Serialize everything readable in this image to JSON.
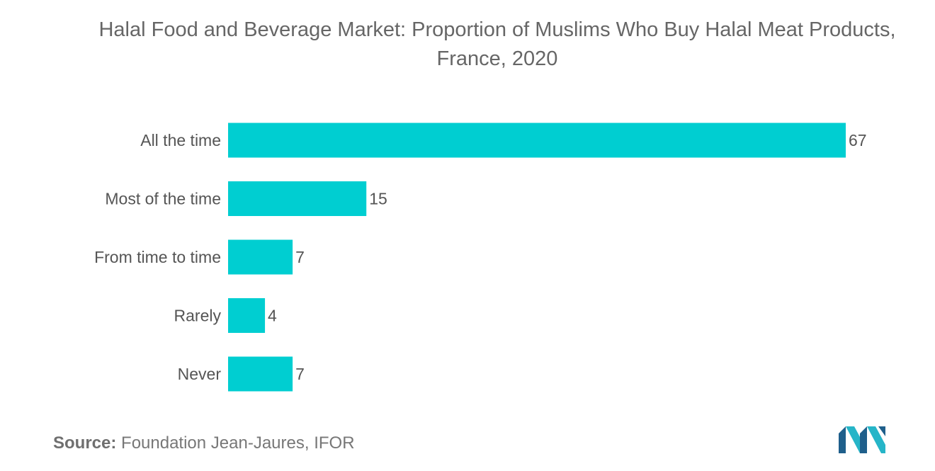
{
  "chart_data": {
    "type": "bar",
    "orientation": "horizontal",
    "title": "Halal Food and Beverage Market: Proportion of Muslims Who Buy Halal Meat Products, France, 2020",
    "categories": [
      "All the time",
      "Most of the time",
      "From time to time",
      "Rarely",
      "Never"
    ],
    "values": [
      67,
      15,
      7,
      4,
      7
    ],
    "xlabel": "",
    "ylabel": "",
    "xlim": [
      0,
      67
    ],
    "grid": false,
    "legend": "none",
    "bar_color": "#00CED1"
  },
  "source": {
    "label": "Source:",
    "text": "Foundation Jean-Jaures, IFOR"
  },
  "logo": {
    "icon": "mordor-intelligence-logo-icon",
    "colors": [
      "#1f5f8b",
      "#26b5c8"
    ]
  }
}
